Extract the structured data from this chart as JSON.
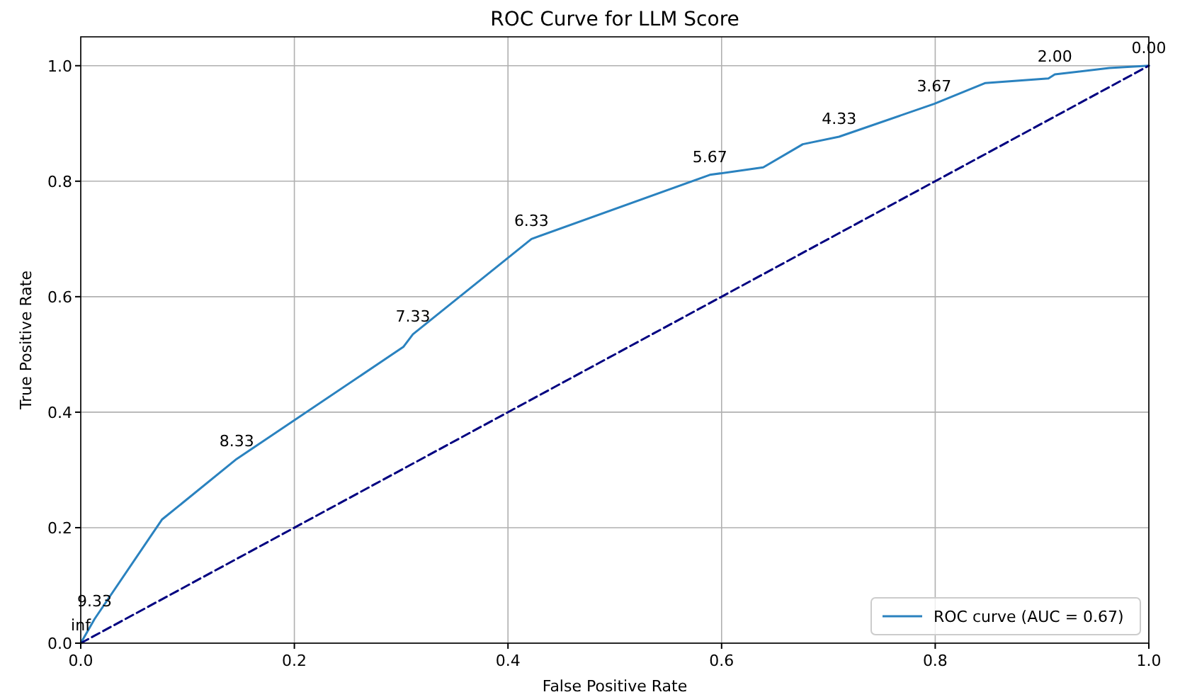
{
  "chart_data": {
    "type": "line",
    "title": "ROC Curve for LLM Score",
    "xlabel": "False Positive Rate",
    "ylabel": "True Positive Rate",
    "xlim": [
      0,
      1
    ],
    "ylim": [
      0,
      1.05
    ],
    "xticks": [
      {
        "value": 0,
        "label": "0.0"
      },
      {
        "value": 0.2,
        "label": "0.2"
      },
      {
        "value": 0.4,
        "label": "0.4"
      },
      {
        "value": 0.6,
        "label": "0.6"
      },
      {
        "value": 0.8,
        "label": "0.8"
      },
      {
        "value": 1,
        "label": "1.0"
      }
    ],
    "yticks": [
      {
        "value": 0,
        "label": "0.0"
      },
      {
        "value": 0.2,
        "label": "0.2"
      },
      {
        "value": 0.4,
        "label": "0.4"
      },
      {
        "value": 0.6,
        "label": "0.6"
      },
      {
        "value": 0.8,
        "label": "0.8"
      },
      {
        "value": 1,
        "label": "1.0"
      }
    ],
    "grid": true,
    "legend": "bottom right",
    "series": [
      {
        "name": "ROC curve (AUC = 0.67)",
        "color": "#2a82bf",
        "line_style": "solid",
        "x": [
          0,
          0.013,
          0.076,
          0.146,
          0.302,
          0.311,
          0.422,
          0.589,
          0.639,
          0.676,
          0.71,
          0.799,
          0.847,
          0.906,
          0.912,
          0.963,
          1
        ],
        "values": [
          0,
          0.042,
          0.214,
          0.319,
          0.513,
          0.535,
          0.7,
          0.811,
          0.824,
          0.864,
          0.877,
          0.934,
          0.97,
          0.978,
          0.985,
          0.996,
          1
        ]
      },
      {
        "color": "#000080",
        "line_style": "dashed",
        "x": [
          0,
          1
        ],
        "values": [
          0,
          1
        ]
      }
    ],
    "annotations": [
      {
        "text": "inf",
        "x": 0,
        "y": 0
      },
      {
        "text": "9.33",
        "x": 0.013,
        "y": 0.042
      },
      {
        "text": "8.33",
        "x": 0.146,
        "y": 0.319
      },
      {
        "text": "7.33",
        "x": 0.311,
        "y": 0.535
      },
      {
        "text": "6.33",
        "x": 0.422,
        "y": 0.7
      },
      {
        "text": "5.67",
        "x": 0.589,
        "y": 0.811
      },
      {
        "text": "4.33",
        "x": 0.71,
        "y": 0.877
      },
      {
        "text": "3.67",
        "x": 0.799,
        "y": 0.934
      },
      {
        "text": "2.00",
        "x": 0.912,
        "y": 0.985
      },
      {
        "text": "0.00",
        "x": 1,
        "y": 1
      }
    ]
  }
}
